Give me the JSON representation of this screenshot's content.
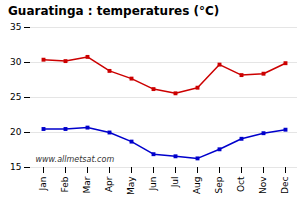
{
  "chart_data": {
    "type": "line",
    "title": "Guaratinga : temperatures (°C)",
    "categories": [
      "Jan",
      "Feb",
      "Mar",
      "Apr",
      "May",
      "Jun",
      "Jul",
      "Aug",
      "Sep",
      "Oct",
      "Nov",
      "Dec"
    ],
    "series": [
      {
        "color": "#cc0000",
        "marker": "square",
        "values": [
          30.4,
          30.2,
          30.8,
          28.8,
          27.7,
          26.2,
          25.6,
          26.4,
          29.7,
          28.2,
          28.4,
          29.9
        ]
      },
      {
        "color": "#0000cc",
        "marker": "square",
        "values": [
          20.5,
          20.5,
          20.7,
          20.0,
          18.7,
          16.9,
          16.6,
          16.3,
          17.6,
          19.1,
          19.9,
          20.4
        ]
      }
    ],
    "ylim": [
      15,
      35
    ],
    "yticks": [
      15,
      20,
      25,
      30,
      35
    ],
    "grid": true,
    "annotation": "www.allmetsat.com"
  }
}
